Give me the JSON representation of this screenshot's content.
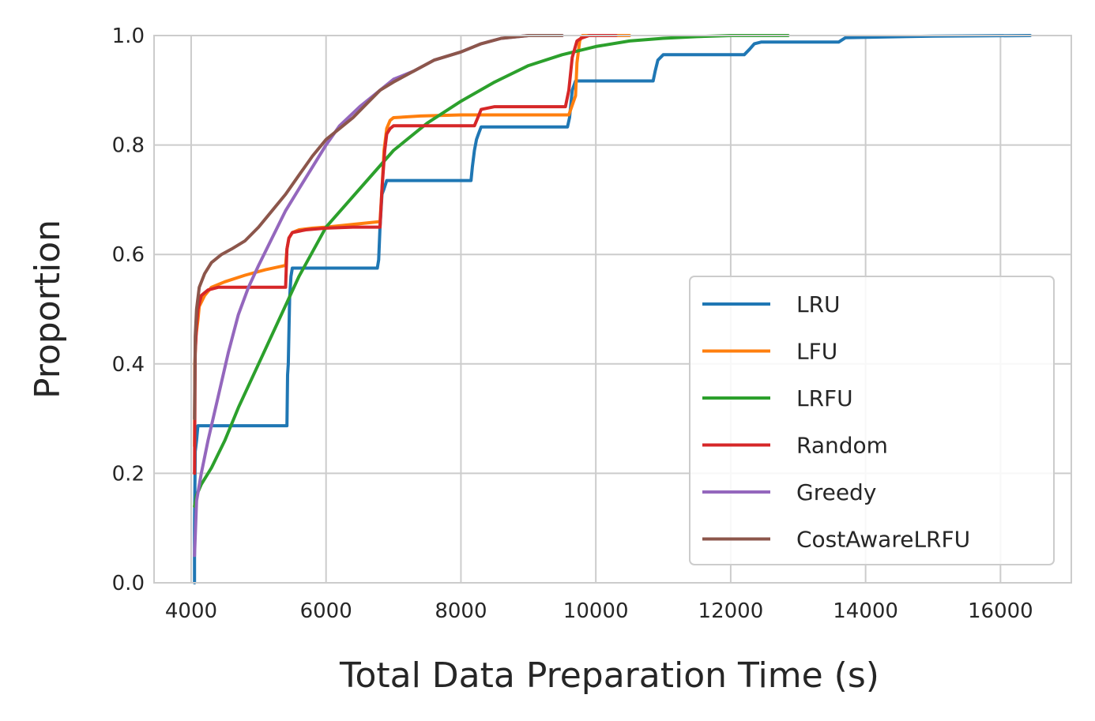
{
  "chart_data": {
    "type": "line",
    "title": "",
    "xlabel": "Total Data Preparation Time (s)",
    "ylabel": "Proportion",
    "xlim": [
      3450,
      17050
    ],
    "ylim": [
      0.0,
      1.0
    ],
    "xticks": [
      4000,
      6000,
      8000,
      10000,
      12000,
      14000,
      16000
    ],
    "xtick_labels": [
      "4000",
      "6000",
      "8000",
      "10000",
      "12000",
      "14000",
      "16000"
    ],
    "yticks": [
      0.0,
      0.2,
      0.4,
      0.6,
      0.8,
      1.0
    ],
    "ytick_labels": [
      "0.0",
      "0.2",
      "0.4",
      "0.6",
      "0.8",
      "1.0"
    ],
    "grid": true,
    "legend_position": "lower-right",
    "series": [
      {
        "name": "LRU",
        "color": "#1f77b4",
        "x": [
          4050,
          4050,
          4060,
          4080,
          4100,
          5420,
          5430,
          5440,
          5460,
          5480,
          5500,
          6760,
          6780,
          6800,
          6830,
          6860,
          6900,
          8150,
          8170,
          8200,
          8230,
          8260,
          8300,
          9580,
          9610,
          9650,
          9700,
          10850,
          10880,
          10920,
          11000,
          12200,
          12280,
          12350,
          12450,
          13600,
          13700,
          15000,
          16440
        ],
        "y": [
          0.0,
          0.1,
          0.24,
          0.26,
          0.287,
          0.287,
          0.38,
          0.4,
          0.52,
          0.56,
          0.575,
          0.575,
          0.59,
          0.65,
          0.71,
          0.72,
          0.735,
          0.735,
          0.76,
          0.79,
          0.81,
          0.82,
          0.833,
          0.833,
          0.85,
          0.9,
          0.917,
          0.917,
          0.935,
          0.955,
          0.965,
          0.965,
          0.975,
          0.985,
          0.988,
          0.988,
          0.996,
          0.999,
          1.0
        ]
      },
      {
        "name": "LFU",
        "color": "#ff7f0e",
        "x": [
          4050,
          4055,
          4070,
          4100,
          4120,
          4200,
          4300,
          4500,
          4800,
          5100,
          5400,
          5420,
          5450,
          5500,
          5600,
          5800,
          6000,
          6400,
          6800,
          6830,
          6860,
          6900,
          6950,
          7000,
          7400,
          8000,
          8600,
          9300,
          9600,
          9700,
          9720,
          9760,
          9800,
          10500
        ],
        "y": [
          0.25,
          0.4,
          0.45,
          0.48,
          0.505,
          0.525,
          0.54,
          0.55,
          0.562,
          0.572,
          0.58,
          0.61,
          0.63,
          0.64,
          0.645,
          0.648,
          0.65,
          0.655,
          0.66,
          0.72,
          0.79,
          0.83,
          0.845,
          0.85,
          0.853,
          0.855,
          0.855,
          0.855,
          0.855,
          0.89,
          0.95,
          0.99,
          1.0,
          1.0
        ]
      },
      {
        "name": "LRFU",
        "color": "#2ca02c",
        "x": [
          4050,
          4080,
          4150,
          4300,
          4500,
          4700,
          5000,
          5300,
          5600,
          6000,
          6500,
          7000,
          7500,
          8000,
          8500,
          9000,
          9500,
          10000,
          10500,
          11000,
          11500,
          12000,
          12850
        ],
        "y": [
          0.14,
          0.16,
          0.18,
          0.21,
          0.26,
          0.32,
          0.4,
          0.48,
          0.56,
          0.65,
          0.72,
          0.79,
          0.84,
          0.88,
          0.915,
          0.945,
          0.965,
          0.98,
          0.99,
          0.995,
          0.998,
          1.0,
          1.0
        ]
      },
      {
        "name": "Random",
        "color": "#d62728",
        "x": [
          4050,
          4060,
          4080,
          4100,
          4150,
          4250,
          4400,
          5400,
          5420,
          5450,
          5500,
          5700,
          6000,
          6400,
          6800,
          6830,
          6870,
          6900,
          6950,
          7000,
          7500,
          8000,
          8200,
          8250,
          8300,
          8500,
          9000,
          9550,
          9600,
          9650,
          9720,
          9780,
          9900,
          10300
        ],
        "y": [
          0.2,
          0.42,
          0.47,
          0.5,
          0.525,
          0.535,
          0.54,
          0.54,
          0.61,
          0.63,
          0.64,
          0.645,
          0.648,
          0.65,
          0.65,
          0.72,
          0.79,
          0.82,
          0.83,
          0.835,
          0.835,
          0.835,
          0.835,
          0.85,
          0.865,
          0.87,
          0.87,
          0.87,
          0.9,
          0.96,
          0.99,
          0.995,
          1.0,
          1.0
        ]
      },
      {
        "name": "Greedy",
        "color": "#9467bd",
        "x": [
          4050,
          4080,
          4150,
          4250,
          4400,
          4550,
          4700,
          4850,
          5000,
          5200,
          5400,
          5600,
          5800,
          6000,
          6200,
          6500,
          6800,
          7000,
          7300,
          7600,
          8000,
          8300,
          8600,
          9000,
          9500
        ],
        "y": [
          0.05,
          0.15,
          0.2,
          0.26,
          0.34,
          0.42,
          0.49,
          0.54,
          0.58,
          0.63,
          0.68,
          0.72,
          0.76,
          0.8,
          0.835,
          0.87,
          0.9,
          0.92,
          0.935,
          0.955,
          0.97,
          0.985,
          0.995,
          1.0,
          1.0
        ]
      },
      {
        "name": "CostAwareLRFU",
        "color": "#8c564b",
        "x": [
          4050,
          4060,
          4080,
          4120,
          4200,
          4300,
          4450,
          4600,
          4800,
          5000,
          5200,
          5400,
          5600,
          5800,
          6000,
          6200,
          6400,
          6600,
          6800,
          7000,
          7300,
          7600,
          8000,
          8300,
          8600,
          9000,
          9500
        ],
        "y": [
          0.3,
          0.45,
          0.5,
          0.54,
          0.565,
          0.585,
          0.6,
          0.61,
          0.625,
          0.65,
          0.68,
          0.71,
          0.745,
          0.78,
          0.81,
          0.83,
          0.85,
          0.875,
          0.9,
          0.915,
          0.935,
          0.955,
          0.97,
          0.985,
          0.995,
          1.0,
          1.0
        ]
      }
    ]
  }
}
